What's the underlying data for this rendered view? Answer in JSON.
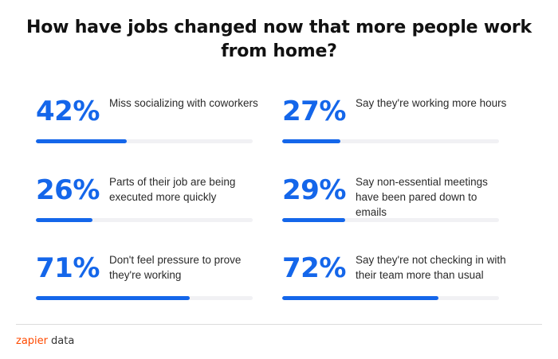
{
  "title": "How have jobs changed now that more people work from home?",
  "colors": {
    "accent": "#1466ea",
    "track": "#f1f1f4",
    "brand": "#ff4a00"
  },
  "chart_data": {
    "type": "bar",
    "title": "How have jobs changed now that more people work from home?",
    "categories": [
      "Miss socializing with coworkers",
      "Say they're working more hours",
      "Parts of their job are being executed more quickly",
      "Say non-essential meetings have been pared down to emails",
      "Don't feel pressure to prove they're working",
      "Say they're not checking in with their team more than usual"
    ],
    "values": [
      42,
      27,
      26,
      29,
      71,
      72
    ],
    "labels": [
      "42%",
      "27%",
      "26%",
      "29%",
      "71%",
      "72%"
    ],
    "ylim": [
      0,
      100
    ],
    "unit": "%"
  },
  "footer": {
    "brand": "zapier",
    "brand_suffix": "data"
  }
}
